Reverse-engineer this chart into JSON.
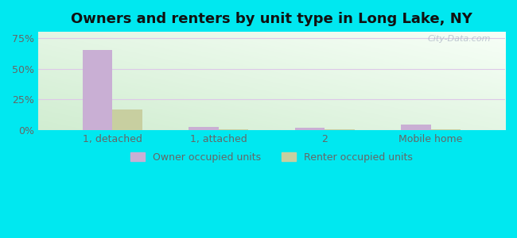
{
  "title": "Owners and renters by unit type in Long Lake, NY",
  "categories": [
    "1, detached",
    "1, attached",
    "2",
    "Mobile home"
  ],
  "owner_values": [
    65.0,
    2.8,
    2.3,
    4.5
  ],
  "renter_values": [
    17.0,
    0.8,
    0.8,
    0.8
  ],
  "owner_color": "#c9afd4",
  "renter_color": "#c8cfa0",
  "yticks": [
    0,
    25,
    50,
    75
  ],
  "ytick_labels": [
    "0%",
    "25%",
    "50%",
    "75%"
  ],
  "ylim": [
    0,
    80
  ],
  "bar_width": 0.28,
  "legend_owner": "Owner occupied units",
  "legend_renter": "Renter occupied units",
  "title_fontsize": 13,
  "tick_fontsize": 9,
  "legend_fontsize": 9,
  "outer_bg_color": "#00e8f0",
  "watermark": "City-Data.com",
  "grid_color": "#ddc8e8",
  "axis_label_color": "#666666",
  "gradient_topleft": [
    0.82,
    0.93,
    0.82
  ],
  "gradient_bottomright": [
    0.97,
    1.0,
    0.97
  ]
}
